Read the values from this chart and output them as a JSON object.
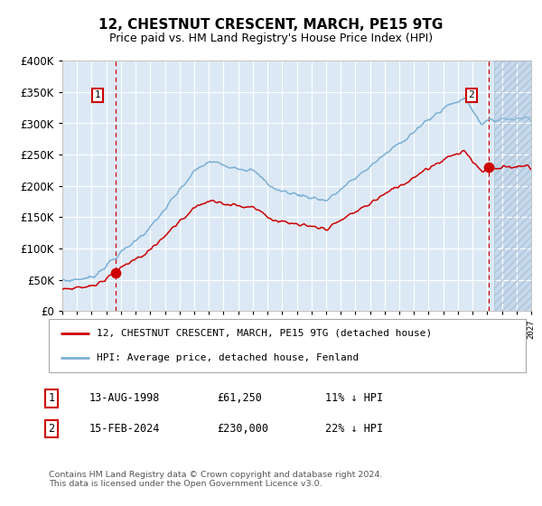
{
  "title": "12, CHESTNUT CRESCENT, MARCH, PE15 9TG",
  "subtitle": "Price paid vs. HM Land Registry's House Price Index (HPI)",
  "legend_line1": "12, CHESTNUT CRESCENT, MARCH, PE15 9TG (detached house)",
  "legend_line2": "HPI: Average price, detached house, Fenland",
  "annotation1_label": "1",
  "annotation1_date": "13-AUG-1998",
  "annotation1_price": "£61,250",
  "annotation1_hpi": "11% ↓ HPI",
  "annotation2_label": "2",
  "annotation2_date": "15-FEB-2024",
  "annotation2_price": "£230,000",
  "annotation2_hpi": "22% ↓ HPI",
  "footer": "Contains HM Land Registry data © Crown copyright and database right 2024.\nThis data is licensed under the Open Government Licence v3.0.",
  "sale1_year": 1998.62,
  "sale1_price": 61250,
  "sale2_year": 2024.12,
  "sale2_price": 230000,
  "hpi_color": "#7aafd4",
  "property_color": "#cc0000",
  "bg_color": "#dce9f5",
  "vline_color": "#cc0000",
  "grid_color": "#ffffff",
  "ylim": [
    0,
    400000
  ],
  "xlim_start": 1995,
  "xlim_end": 2027,
  "title_fontsize": 11,
  "subtitle_fontsize": 9
}
